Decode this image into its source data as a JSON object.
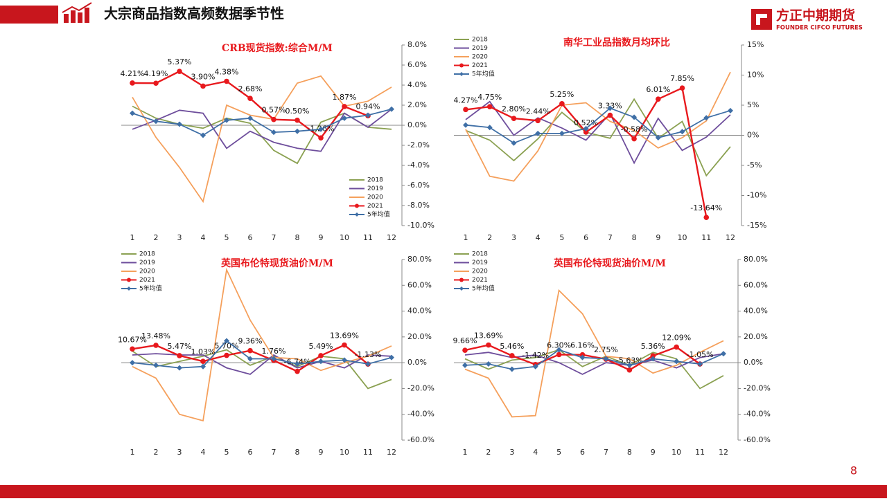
{
  "header": {
    "title": "大宗商品指数高频数据季节性",
    "brand": "方正中期期货",
    "brand_en": "FOUNDER CIFCO FUTURES"
  },
  "page_number": "8",
  "chart_data": [
    {
      "type": "line",
      "title": "CRB现货指数:综合M/M",
      "legend": "lower right",
      "categories": [
        "1",
        "2",
        "3",
        "4",
        "5",
        "6",
        "7",
        "8",
        "9",
        "10",
        "11",
        "12"
      ],
      "ylim": [
        -10,
        8
      ],
      "yticks": [
        {
          "value": -10,
          "label": "-10.0%"
        },
        {
          "value": -8,
          "label": "-8.0%"
        },
        {
          "value": -6,
          "label": "-6.0%"
        },
        {
          "value": -4,
          "label": "-4.0%"
        },
        {
          "value": -2,
          "label": "-2.0%"
        },
        {
          "value": 0,
          "label": "0.0%"
        },
        {
          "value": 2,
          "label": "2.0%"
        },
        {
          "value": 4,
          "label": "4.0%"
        },
        {
          "value": 6,
          "label": "6.0%"
        },
        {
          "value": 8,
          "label": "8.0%"
        }
      ],
      "series": [
        {
          "name": "2018",
          "color": "#8ba152",
          "values": [
            1.9,
            0.7,
            0.1,
            -0.3,
            0.7,
            0.2,
            -2.5,
            -3.8,
            0.3,
            1.2,
            -0.2,
            -0.4
          ]
        },
        {
          "name": "2019",
          "color": "#6e4e9c",
          "values": [
            -0.4,
            0.5,
            1.5,
            1.2,
            -2.3,
            -0.6,
            -1.7,
            -2.3,
            -2.6,
            1.2,
            -0.2,
            1.6
          ]
        },
        {
          "name": "2020",
          "color": "#f5a05c",
          "values": [
            2.8,
            -1.2,
            -4.2,
            -7.6,
            2.0,
            1.0,
            0.6,
            4.2,
            4.9,
            1.9,
            2.4,
            3.8
          ]
        },
        {
          "name": "2021",
          "color": "#e8191d",
          "values": [
            4.21,
            4.19,
            5.37,
            3.9,
            4.38,
            2.68,
            0.57,
            0.5,
            -1.26,
            1.87,
            0.94,
            null
          ],
          "value_labels": [
            "4.21%",
            "4.19%",
            "5.37%",
            "3.90%",
            "4.38%",
            "2.68%",
            "0.57%",
            "0.50%",
            "-1.26%",
            "1.87%",
            "0.94%",
            null
          ]
        },
        {
          "name": "5年均值",
          "color": "#3f6fa6",
          "values": [
            1.2,
            0.4,
            0.1,
            -1.0,
            0.5,
            0.7,
            -0.7,
            -0.6,
            -0.4,
            0.7,
            1.0,
            1.6
          ]
        }
      ]
    },
    {
      "type": "line",
      "title": "南华工业品指数月均环比",
      "legend": "upper left",
      "categories": [
        "1",
        "2",
        "3",
        "4",
        "5",
        "6",
        "7",
        "8",
        "9",
        "10",
        "11",
        "12"
      ],
      "ylim": [
        -15,
        15
      ],
      "yticks": [
        {
          "value": -15,
          "label": "-15%"
        },
        {
          "value": -10,
          "label": "-10%"
        },
        {
          "value": -5,
          "label": "-5%"
        },
        {
          "value": 0,
          "label": "0%"
        },
        {
          "value": 5,
          "label": "5%"
        },
        {
          "value": 10,
          "label": "10%"
        },
        {
          "value": 15,
          "label": "15%"
        }
      ],
      "series": [
        {
          "name": "2018",
          "color": "#8ba152",
          "values": [
            0.8,
            -0.8,
            -4.2,
            -0.6,
            3.8,
            0.5,
            -0.5,
            6.0,
            -0.5,
            2.3,
            -6.7,
            -1.9
          ]
        },
        {
          "name": "2019",
          "color": "#6e4e9c",
          "values": [
            2.6,
            5.6,
            0.0,
            2.9,
            1.2,
            -0.8,
            3.6,
            -4.6,
            2.8,
            -2.5,
            -0.3,
            3.4
          ]
        },
        {
          "name": "2020",
          "color": "#f5a05c",
          "values": [
            1.0,
            -6.8,
            -7.6,
            -2.6,
            5.0,
            5.4,
            2.3,
            0.8,
            -2.1,
            -0.4,
            2.4,
            10.5
          ]
        },
        {
          "name": "2021",
          "color": "#e8191d",
          "values": [
            4.27,
            4.75,
            2.8,
            2.44,
            5.25,
            0.52,
            3.33,
            -0.58,
            6.01,
            7.85,
            -13.64,
            null
          ],
          "value_labels": [
            "4.27%",
            "4.75%",
            "2.80%",
            "2.44%",
            "5.25%",
            "0.52%",
            "3.33%",
            "-0.58%",
            "6.01%",
            "7.85%",
            "-13.64%",
            null
          ]
        },
        {
          "name": "5年均值",
          "color": "#3f6fa6",
          "values": [
            1.7,
            1.3,
            -1.3,
            0.3,
            0.3,
            1.1,
            4.5,
            3.0,
            -0.4,
            0.6,
            2.9,
            4.1
          ]
        }
      ]
    },
    {
      "type": "line",
      "title": "英国布伦特现货油价M/M",
      "legend": "upper left",
      "categories": [
        "1",
        "2",
        "3",
        "4",
        "5",
        "6",
        "7",
        "8",
        "9",
        "10",
        "11",
        "12"
      ],
      "ylim": [
        -60,
        80
      ],
      "yticks": [
        {
          "value": -60,
          "label": "-60.0%"
        },
        {
          "value": -40,
          "label": "-40.0%"
        },
        {
          "value": -20,
          "label": "-20.0%"
        },
        {
          "value": 0,
          "label": "0.0%"
        },
        {
          "value": 20,
          "label": "20.0%"
        },
        {
          "value": 40,
          "label": "40.0%"
        },
        {
          "value": 60,
          "label": "60.0%"
        },
        {
          "value": 80,
          "label": "80.0%"
        }
      ],
      "series": [
        {
          "name": "2018",
          "color": "#8ba152",
          "values": [
            9,
            -3,
            1,
            5,
            10,
            -2,
            5,
            -3,
            5,
            3,
            -20,
            -13
          ]
        },
        {
          "name": "2019",
          "color": "#6e4e9c",
          "values": [
            6,
            7,
            6,
            6,
            -4,
            -9,
            6,
            -4,
            1,
            -4,
            6,
            5
          ]
        },
        {
          "name": "2020",
          "color": "#f5a05c",
          "values": [
            -3,
            -12,
            -40,
            -45,
            72,
            33,
            4,
            3,
            -6,
            0,
            5,
            13
          ]
        },
        {
          "name": "2021",
          "color": "#e8191d",
          "values": [
            10.67,
            13.48,
            5.47,
            1.03,
            5.7,
            9.36,
            1.76,
            -6.74,
            5.49,
            13.69,
            -1.13,
            null
          ],
          "value_labels": [
            "10.67%",
            "13.48%",
            "5.47%",
            "1.03%",
            "5.70%",
            "9.36%",
            "1.76%",
            "-6.74%",
            "5.49%",
            "13.69%",
            "-1.13%",
            null
          ]
        },
        {
          "name": "5年均值",
          "color": "#3f6fa6",
          "values": [
            0,
            -2,
            -4,
            -3,
            17,
            3,
            3,
            -1,
            1,
            2,
            -1,
            4
          ]
        }
      ]
    },
    {
      "type": "line",
      "title": "英国布伦特现货油价M/M",
      "legend": "upper left",
      "categories": [
        "1",
        "2",
        "3",
        "4",
        "5",
        "6",
        "7",
        "8",
        "9",
        "10",
        "11",
        "12"
      ],
      "ylim": [
        -60,
        80
      ],
      "yticks": [
        {
          "value": -60,
          "label": "-60.0%"
        },
        {
          "value": -40,
          "label": "-40.0%"
        },
        {
          "value": -20,
          "label": "-20.0%"
        },
        {
          "value": 0,
          "label": "0.0%"
        },
        {
          "value": 20,
          "label": "20.0%"
        },
        {
          "value": 40,
          "label": "40.0%"
        },
        {
          "value": 60,
          "label": "60.0%"
        },
        {
          "value": 80,
          "label": "80.0%"
        }
      ],
      "series": [
        {
          "name": "2018",
          "color": "#8ba152",
          "values": [
            3,
            -5,
            2,
            4,
            10,
            -3,
            5,
            -2,
            8,
            3,
            -20,
            -10
          ]
        },
        {
          "name": "2019",
          "color": "#6e4e9c",
          "values": [
            6,
            8,
            4,
            6,
            0,
            -9,
            0,
            -2,
            2,
            -4,
            4,
            7
          ]
        },
        {
          "name": "2020",
          "color": "#f5a05c",
          "values": [
            -5,
            -12,
            -42,
            -41,
            56,
            38,
            5,
            3,
            -8,
            -2,
            8,
            17
          ]
        },
        {
          "name": "2021",
          "color": "#e8191d",
          "values": [
            9.66,
            13.69,
            5.46,
            -1.42,
            6.3,
            6.16,
            2.75,
            -5.63,
            5.36,
            12.09,
            -1.05,
            null
          ],
          "value_labels": [
            "9.66%",
            "13.69%",
            "5.46%",
            "-1.42%",
            "6.30%",
            "6.16%",
            "2.75%",
            "-5.63%",
            "5.36%",
            "12.09%",
            "-1.05%",
            null
          ]
        },
        {
          "name": "5年均值",
          "color": "#3f6fa6",
          "values": [
            -2,
            -1,
            -5,
            -3,
            10,
            4,
            3,
            -2,
            3,
            1,
            -1,
            7
          ]
        }
      ]
    }
  ]
}
